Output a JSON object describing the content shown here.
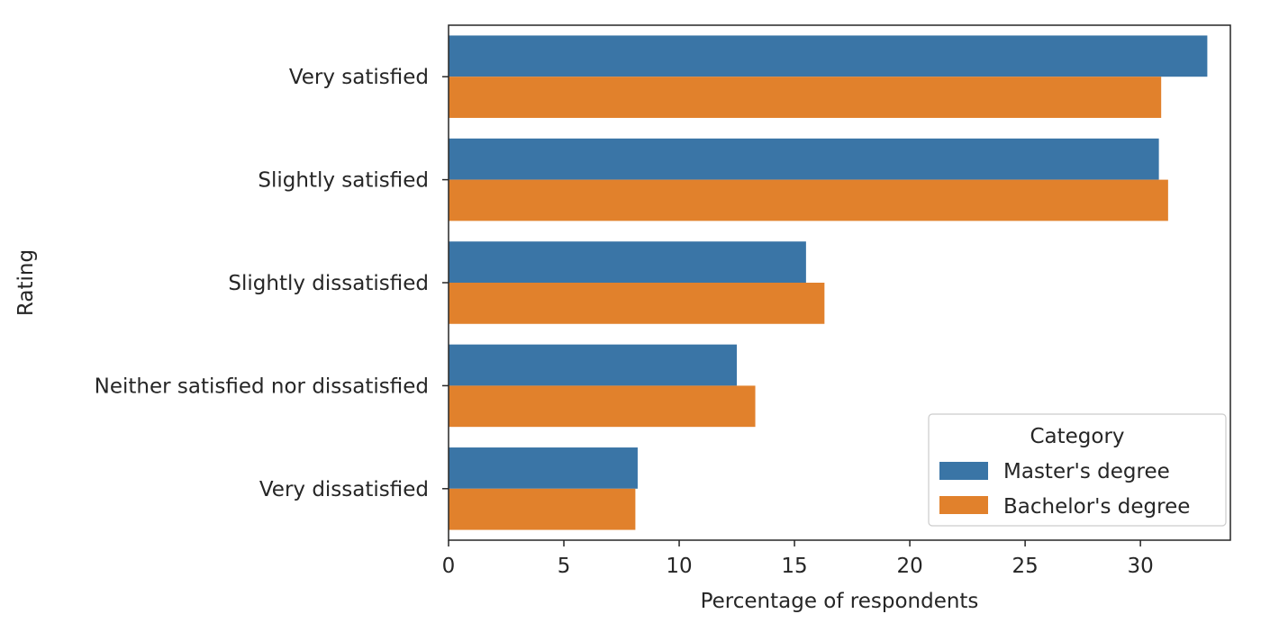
{
  "chart_data": {
    "type": "bar",
    "orientation": "horizontal",
    "categories": [
      "Very satisfied",
      "Slightly satisfied",
      "Slightly dissatisfied",
      "Neither satisfied nor dissatisfied",
      "Very dissatisfied"
    ],
    "series": [
      {
        "name": "Master's degree",
        "color": "#3a75a6",
        "values": [
          32.9,
          30.8,
          15.5,
          12.5,
          8.2
        ]
      },
      {
        "name": "Bachelor's degree",
        "color": "#e1812c",
        "values": [
          30.9,
          31.2,
          16.3,
          13.3,
          8.1
        ]
      }
    ],
    "xlabel": "Percentage of respondents",
    "ylabel": "Rating",
    "xlim": [
      0,
      33.9
    ],
    "xticks": [
      0,
      5,
      10,
      15,
      20,
      25,
      30
    ],
    "grid": false,
    "legend": {
      "title": "Category",
      "position": "bottom-right"
    }
  }
}
